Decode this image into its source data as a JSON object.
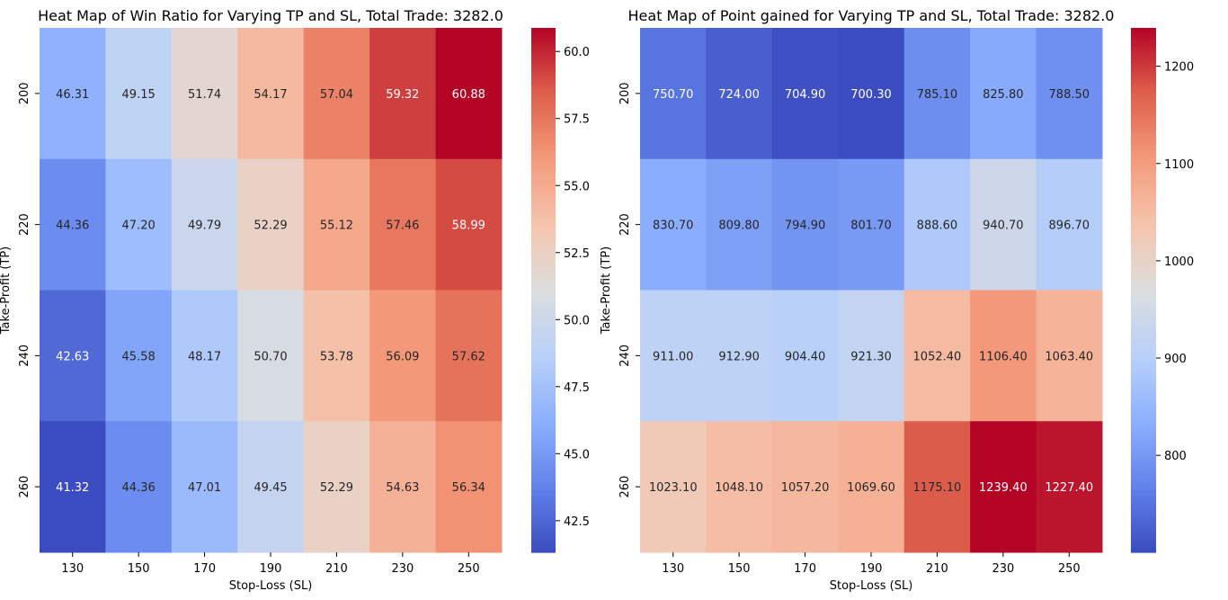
{
  "chart_data": [
    {
      "type": "heatmap",
      "title": "Heat Map of Win Ratio for Varying TP and SL, Total Trade: 3282.0",
      "xlabel": "Stop-Loss (SL)",
      "ylabel": "Take-Profit (TP)",
      "x": [
        "130",
        "150",
        "170",
        "190",
        "210",
        "230",
        "250"
      ],
      "y": [
        "200",
        "220",
        "240",
        "260"
      ],
      "values": [
        [
          46.31,
          49.15,
          51.74,
          54.17,
          57.04,
          59.32,
          60.88
        ],
        [
          44.36,
          47.2,
          49.79,
          52.29,
          55.12,
          57.46,
          58.99
        ],
        [
          42.63,
          45.58,
          48.17,
          50.7,
          53.78,
          56.09,
          57.62
        ],
        [
          41.32,
          44.36,
          47.01,
          49.45,
          52.29,
          54.63,
          56.34
        ]
      ],
      "cell_labels": [
        [
          "46.31",
          "49.15",
          "51.74",
          "54.17",
          "57.04",
          "59.32",
          "60.88"
        ],
        [
          "44.36",
          "47.20",
          "49.79",
          "52.29",
          "55.12",
          "57.46",
          "58.99"
        ],
        [
          "42.63",
          "45.58",
          "48.17",
          "50.70",
          "53.78",
          "56.09",
          "57.62"
        ],
        [
          "41.32",
          "44.36",
          "47.01",
          "49.45",
          "52.29",
          "54.63",
          "56.34"
        ]
      ],
      "colormap": "coolwarm",
      "vmin": 41.32,
      "vmax": 60.88,
      "colorbar_ticks": [
        "42.5",
        "45.0",
        "47.5",
        "50.0",
        "52.5",
        "55.0",
        "57.5",
        "60.0"
      ]
    },
    {
      "type": "heatmap",
      "title": "Heat Map of Point gained for Varying TP and SL, Total Trade: 3282.0",
      "xlabel": "Stop-Loss (SL)",
      "ylabel": "Take-Profit (TP)",
      "x": [
        "130",
        "150",
        "170",
        "190",
        "210",
        "230",
        "250"
      ],
      "y": [
        "200",
        "220",
        "240",
        "260"
      ],
      "values": [
        [
          750.7,
          724.0,
          704.9,
          700.3,
          785.1,
          825.8,
          788.5
        ],
        [
          830.7,
          809.8,
          794.9,
          801.7,
          888.6,
          940.7,
          896.7
        ],
        [
          911.0,
          912.9,
          904.4,
          921.3,
          1052.4,
          1106.4,
          1063.4
        ],
        [
          1023.1,
          1048.1,
          1057.2,
          1069.6,
          1175.1,
          1239.4,
          1227.4
        ]
      ],
      "cell_labels": [
        [
          "750.70",
          "724.00",
          "704.90",
          "700.30",
          "785.10",
          "825.80",
          "788.50"
        ],
        [
          "830.70",
          "809.80",
          "794.90",
          "801.70",
          "888.60",
          "940.70",
          "896.70"
        ],
        [
          "911.00",
          "912.90",
          "904.40",
          "921.30",
          "1052.40",
          "1106.40",
          "1063.40"
        ],
        [
          "1023.10",
          "1048.10",
          "1057.20",
          "1069.60",
          "1175.10",
          "1239.40",
          "1227.40"
        ]
      ],
      "colormap": "coolwarm",
      "vmin": 700.3,
      "vmax": 1239.4,
      "colorbar_ticks": [
        "800",
        "900",
        "1000",
        "1100",
        "1200"
      ]
    }
  ]
}
